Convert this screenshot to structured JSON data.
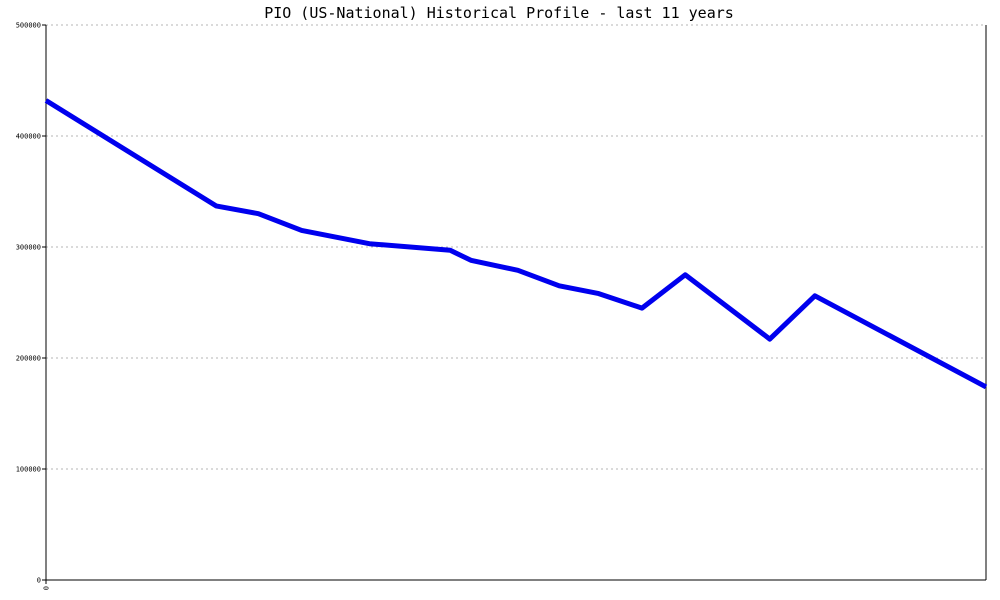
{
  "chart_data": {
    "type": "line",
    "title": "PIO (US-National) Historical Profile - last 11 years",
    "xlabel": "",
    "ylabel": "",
    "x_tick_labels": [
      "0"
    ],
    "y_ticks": [
      0,
      100000,
      200000,
      300000,
      400000,
      500000
    ],
    "y_tick_labels": [
      "0",
      "100000",
      "200000",
      "300000",
      "400000",
      "500000"
    ],
    "ylim": [
      0,
      500000
    ],
    "grid": true,
    "line_color": "#0000ee",
    "series": [
      {
        "values": [
          432000,
          337000,
          330000,
          315000,
          303000,
          297000,
          288000,
          279000,
          265000,
          258000,
          245000,
          275000,
          217000,
          256000,
          174000
        ],
        "positions": [
          0,
          0.181,
          0.226,
          0.272,
          0.344,
          0.43,
          0.452,
          0.502,
          0.546,
          0.588,
          0.634,
          0.68,
          0.77,
          0.818,
          1
        ]
      }
    ]
  }
}
